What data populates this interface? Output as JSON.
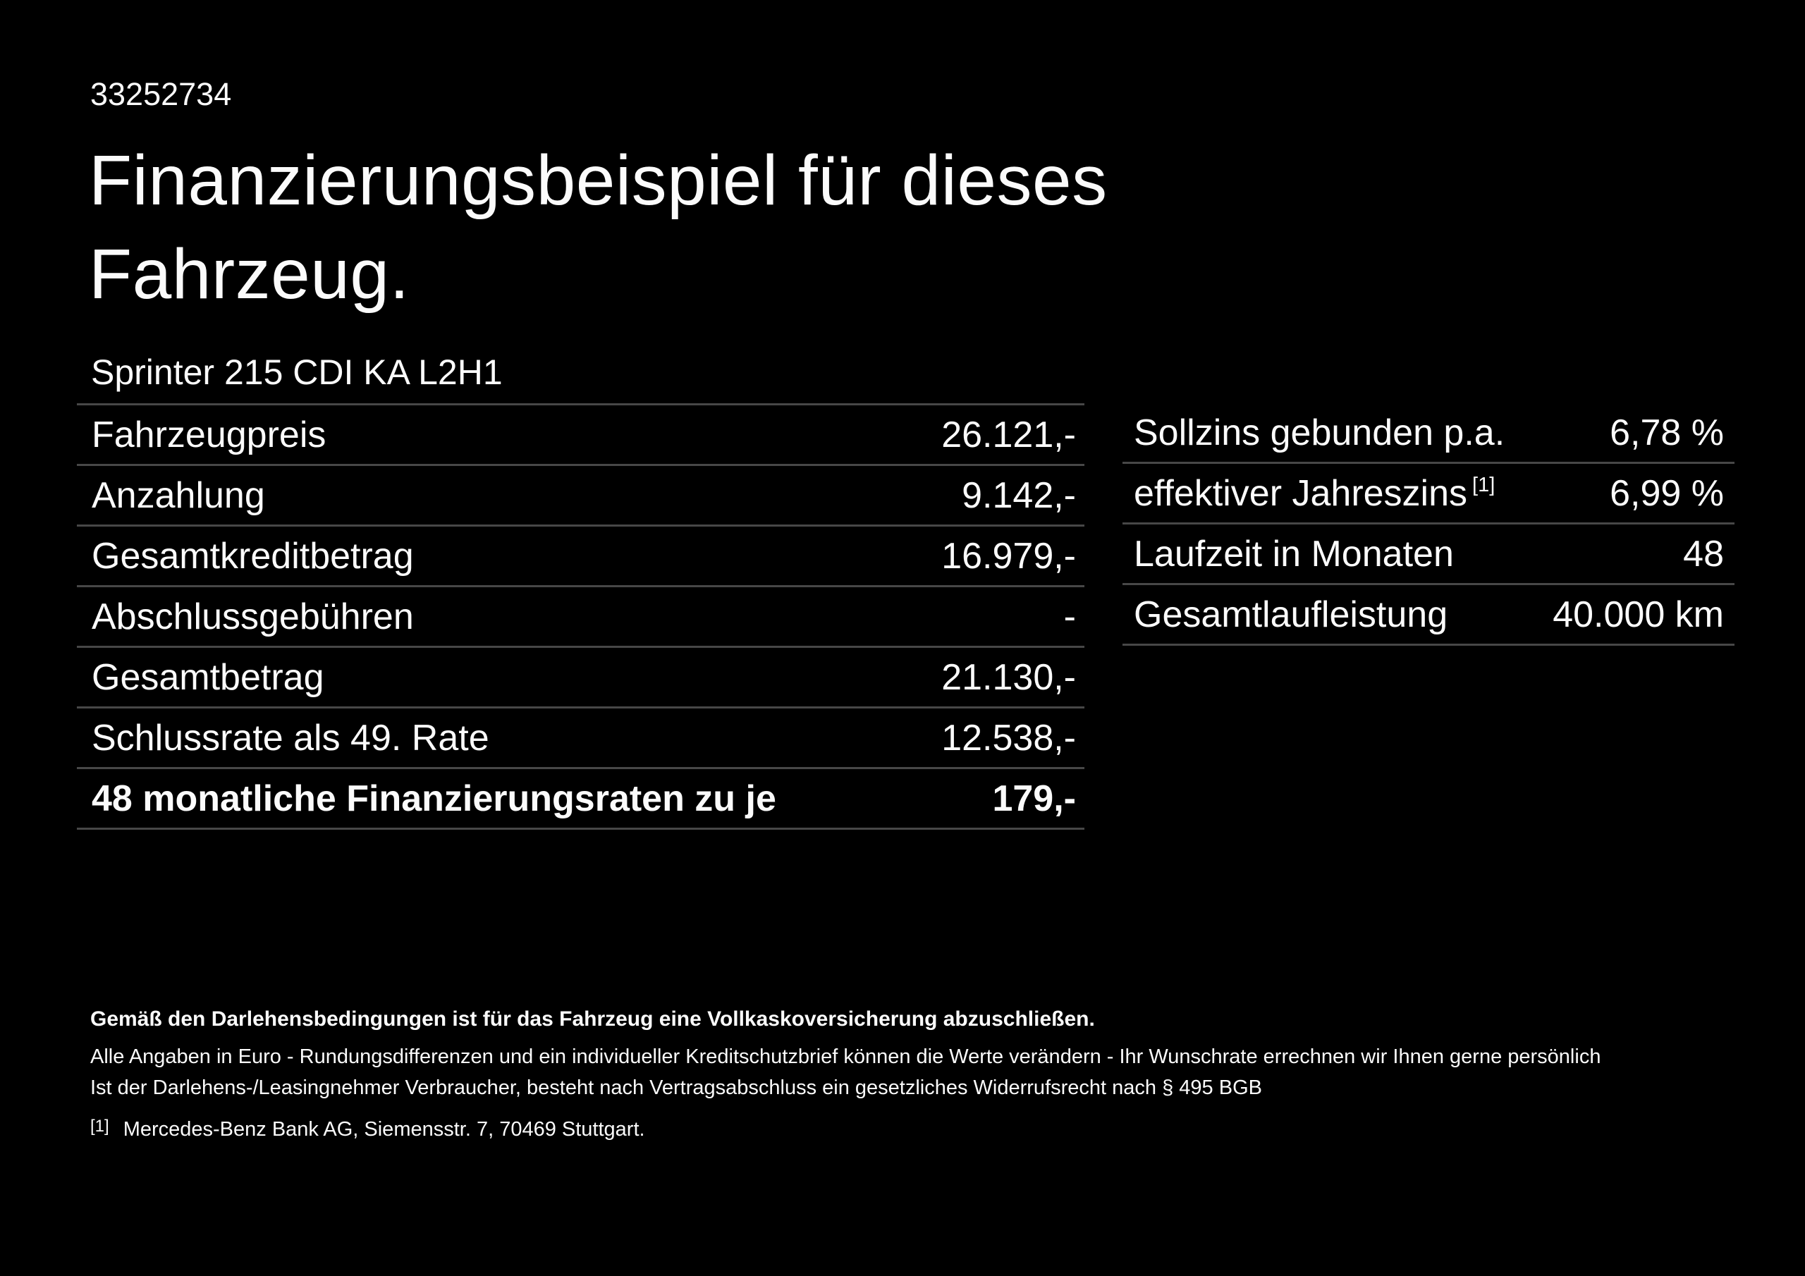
{
  "page": {
    "id_number": "33252734",
    "title_line1": "Finanzierungsbeispiel für dieses",
    "title_line2": "Fahrzeug.",
    "vehicle_name": "Sprinter 215 CDI KA L2H1"
  },
  "left_table": {
    "rows": [
      {
        "label": "Fahrzeugpreis",
        "value": "26.121,-"
      },
      {
        "label": "Anzahlung",
        "value": "9.142,-"
      },
      {
        "label": "Gesamtkreditbetrag",
        "value": "16.979,-"
      },
      {
        "label": "Abschlussgebühren",
        "value": "-"
      },
      {
        "label": "Gesamtbetrag",
        "value": "21.130,-"
      },
      {
        "label": "Schlussrate als 49. Rate",
        "value": "12.538,-"
      },
      {
        "label": "48 monatliche Finanzierungsraten zu je",
        "value": "179,-"
      }
    ]
  },
  "right_table": {
    "rows": [
      {
        "label": "Sollzins gebunden p.a.",
        "sup": "",
        "value": "6,78 %"
      },
      {
        "label": "effektiver Jahreszins",
        "sup": "[1]",
        "value": "6,99 %"
      },
      {
        "label": "Laufzeit in Monaten",
        "sup": "",
        "value": "48"
      },
      {
        "label": "Gesamtlaufleistung",
        "sup": "",
        "value": "40.000 km"
      }
    ]
  },
  "fineprint": {
    "insurance_note": "Gemäß den Darlehensbedingungen ist für das Fahrzeug eine Vollkaskoversicherung abzuschließen.",
    "disclaimer_line1": "Alle Angaben in Euro - Rundungsdifferenzen und ein individueller Kreditschutzbrief können die Werte verändern - Ihr Wunschrate errechnen wir Ihnen gerne persönlich",
    "disclaimer_line2": "Ist der Darlehens-/Leasingnehmer Verbraucher, besteht nach Vertragsabschluss ein gesetzliches Widerrufsrecht nach § 495 BGB",
    "reference_marker": "[1]",
    "reference_text": "Mercedes-Benz Bank AG, Siemensstr. 7, 70469 Stuttgart."
  },
  "colors": {
    "background": "#000000",
    "text": "#fbfbfb",
    "divider": "#474747"
  }
}
